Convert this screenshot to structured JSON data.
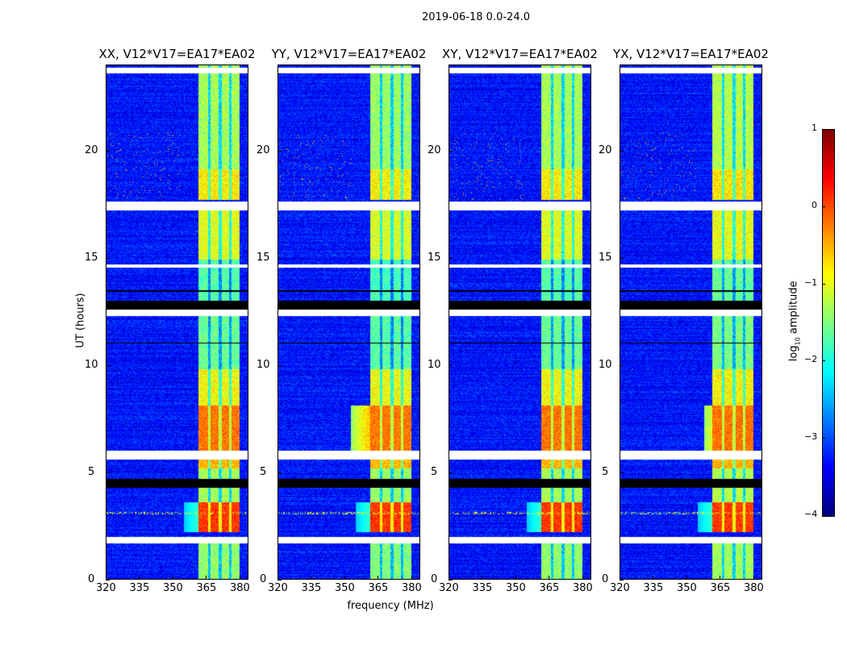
{
  "chart_data": {
    "type": "heatmap",
    "suptitle": "2019-06-18 0.0-24.0",
    "xlabel": "frequency (MHz)",
    "ylabel": "UT (hours)",
    "xlim": [
      320,
      384
    ],
    "ylim": [
      0,
      24
    ],
    "xticks": [
      320,
      335,
      350,
      365,
      380
    ],
    "yticks": [
      0,
      5,
      10,
      15,
      20
    ],
    "colorbar": {
      "label_prefix": "log",
      "label_sub": "10",
      "label_suffix": " amplitude",
      "range": [
        -4,
        1
      ],
      "ticks": [
        -4,
        -3,
        -2,
        -1,
        0,
        1
      ],
      "colormap": "jet"
    },
    "panels": [
      {
        "title": "XX, V12*V17=EA17*EA02",
        "low_edge_6_8h": 361.5,
        "strength": 1.0
      },
      {
        "title": "YY, V12*V17=EA17*EA02",
        "low_edge_6_8h": 353,
        "strength": 1.05
      },
      {
        "title": "XY, V12*V17=EA17*EA02",
        "low_edge_6_8h": 361.5,
        "strength": 1.0
      },
      {
        "title": "YX, V12*V17=EA17*EA02",
        "low_edge_6_8h": 358,
        "strength": 0.95
      }
    ],
    "background_level": -3.3,
    "bands_MHz": [
      [
        361.5,
        366
      ],
      [
        367,
        370.5
      ],
      [
        372,
        375.5
      ],
      [
        376.5,
        380
      ]
    ],
    "band_levels_by_time": [
      {
        "t": [
          0,
          1.7
        ],
        "level": -1.4
      },
      {
        "t": [
          2.2,
          3.6
        ],
        "level": 0.1
      },
      {
        "t": [
          3.6,
          5.2
        ],
        "level": -1.3
      },
      {
        "t": [
          5.2,
          5.6
        ],
        "level": -0.5
      },
      {
        "t": [
          6.0,
          8.1
        ],
        "level": -0.2
      },
      {
        "t": [
          8.1,
          9.8
        ],
        "level": -0.9
      },
      {
        "t": [
          9.8,
          12.3
        ],
        "level": -1.6
      },
      {
        "t": [
          12.6,
          14.9
        ],
        "level": -1.7
      },
      {
        "t": [
          14.9,
          17.2
        ],
        "level": -1.0
      },
      {
        "t": [
          17.7,
          19.1
        ],
        "level": -0.8
      },
      {
        "t": [
          19.1,
          24
        ],
        "level": -1.3
      }
    ],
    "flagged_hours": [
      [
        1.7,
        2.0
      ],
      [
        5.6,
        6.0
      ],
      [
        12.3,
        12.6
      ],
      [
        17.2,
        17.6
      ],
      [
        23.6,
        23.85
      ],
      [
        14.55,
        14.7
      ]
    ],
    "zero_hours": [
      [
        12.6,
        13.0
      ],
      [
        4.3,
        4.7
      ],
      [
        13.4,
        13.5
      ],
      [
        11.0,
        11.05
      ]
    ]
  }
}
